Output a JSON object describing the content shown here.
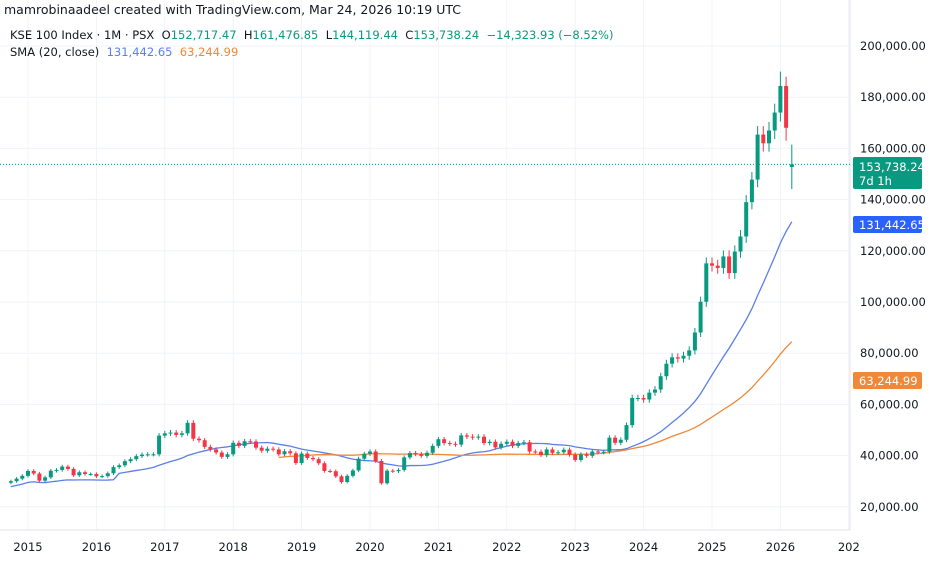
{
  "credit": "mamrobinaadeel created with TradingView.com, Mar 24, 2026 10:19 UTC",
  "legend": {
    "symbol": "KSE 100 Index · 1M · PSX",
    "open_prefix": "O",
    "open": "152,717.47",
    "high_prefix": "H",
    "high": "161,476.85",
    "low_prefix": "L",
    "low": "144,119.44",
    "close_prefix": "C",
    "close": "153,738.24",
    "change": "−14,323.93 (−8.52%)",
    "indicator": "SMA (20, close)",
    "sma_fast": "131,442.65",
    "sma_slow": "63,244.99"
  },
  "price_labels": {
    "last": "153,738.24",
    "countdown": "7d 1h",
    "sma_fast": "131,442.65",
    "sma_slow": "63,244.99"
  },
  "colors": {
    "up": "#089981",
    "down": "#f23645",
    "sma_fast": "#5b7fe8",
    "sma_fast_label": "#2962ff",
    "sma_slow": "#f0883a",
    "grid": "#f0f3fa"
  },
  "chart_data": {
    "type": "candlestick",
    "timeframe": "1M",
    "first_month": "2014-10",
    "ylim": [
      0,
      210000
    ],
    "y_ticks": [
      "20,000.00",
      "40,000.00",
      "60,000.00",
      "80,000.00",
      "100,000.00",
      "120,000.00",
      "140,000.00",
      "160,000.00",
      "180,000.00",
      "200,000.00"
    ],
    "x_ticks": [
      "2015",
      "2016",
      "2017",
      "2018",
      "2019",
      "2020",
      "2021",
      "2022",
      "2023",
      "2024",
      "2025",
      "2026",
      "202"
    ],
    "grid": true,
    "closes": [
      30000,
      31000,
      32100,
      34000,
      33000,
      30200,
      31500,
      34100,
      34400,
      35700,
      34800,
      32300,
      33500,
      32800,
      32800,
      31900,
      32000,
      33100,
      35500,
      36200,
      37800,
      38600,
      39800,
      40400,
      40500,
      40500,
      47800,
      48700,
      49000,
      48100,
      48700,
      52800,
      46600,
      46000,
      43400,
      42400,
      41200,
      39500,
      40500,
      45000,
      43800,
      45600,
      45500,
      43100,
      41900,
      42700,
      42400,
      40500,
      41700,
      40900,
      37100,
      40800,
      39100,
      38600,
      37000,
      34000,
      33900,
      31900,
      29700,
      32100,
      34200,
      38800,
      40700,
      41600,
      37900,
      29200,
      34100,
      33900,
      34400,
      39300,
      41000,
      40600,
      39900,
      41100,
      43800,
      46400,
      44900,
      44600,
      44300,
      47900,
      47400,
      47100,
      47400,
      44900,
      45400,
      43200,
      44600,
      45400,
      43800,
      44900,
      45200,
      41600,
      41500,
      40200,
      42400,
      41100,
      41300,
      42300,
      40400,
      38300,
      40500,
      39900,
      41600,
      41300,
      41500,
      47000,
      45000,
      46200,
      51900,
      62500,
      62500,
      61900,
      64600,
      65800,
      71000,
      75900,
      78400,
      77900,
      79000,
      81100,
      88100,
      100100,
      115100,
      114200,
      113300,
      117800,
      111300,
      119700,
      125600,
      139000,
      147800,
      165400,
      162000,
      167000,
      174000,
      184400,
      168062,
      153738.24
    ],
    "last_candle": {
      "open": 152717.47,
      "high": 161476.85,
      "low": 144119.44,
      "close": 153738.24
    },
    "series": [
      {
        "name": "SMA (20, close)",
        "last": 131442.65
      },
      {
        "name": "SMA",
        "last": 63244.99
      }
    ]
  }
}
